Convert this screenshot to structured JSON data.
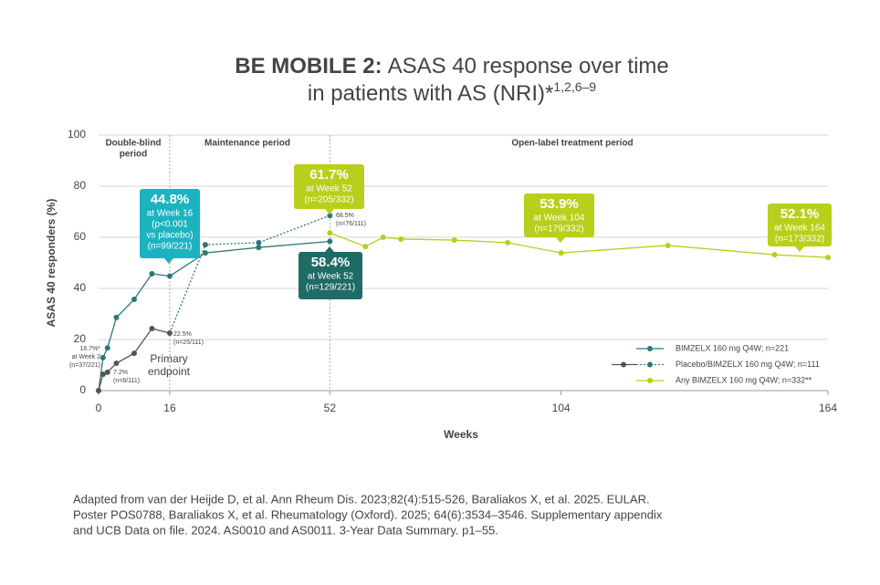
{
  "chart_data": {
    "type": "line",
    "title_lead": "BE MOBILE 2:",
    "title_lines": [
      "ASAS 40 response over time",
      "in patients with AS (NRI)*"
    ],
    "title_sup": "1,2,6–9",
    "x_label": "Weeks",
    "y_label": "ASAS 40 responders (%)",
    "xlim": [
      0,
      164
    ],
    "xticks": [
      0,
      16,
      52,
      104,
      164
    ],
    "ylim": [
      0,
      100
    ],
    "yticks": [
      0,
      20,
      40,
      60,
      80,
      100
    ],
    "grid": true,
    "period_lines": [
      16,
      52
    ],
    "periods": [
      [
        "Double-blind",
        "period"
      ],
      [
        "Maintenance period"
      ],
      [
        "Open-label treatment period"
      ]
    ],
    "series": [
      {
        "name": "BIMZELX 160 mg Q4W; n=221",
        "color": "#2a7a74",
        "x": [
          0,
          1,
          2,
          4,
          8,
          12,
          16,
          24,
          36,
          52
        ],
        "values": [
          0,
          12.9,
          16.7,
          28.6,
          35.7,
          45.7,
          44.8,
          53.9,
          56,
          58.4
        ]
      },
      {
        "name": "Placebo/BIMZELX 160 mg Q4W; n=111",
        "color": "#555555",
        "extension_color": "#2a7a74",
        "dashed_after_x": 16,
        "x": [
          0,
          1,
          2,
          4,
          8,
          12,
          16,
          24,
          36,
          52
        ],
        "values": [
          0,
          6.4,
          7.2,
          10.7,
          14.6,
          24.3,
          22.5,
          57.1,
          57.9,
          68.5
        ]
      },
      {
        "name": "Any BIMZELX 160 mg Q4W; n=332**",
        "color": "#b8cf1c",
        "x": [
          52,
          60,
          64,
          68,
          80,
          92,
          104,
          128,
          152,
          164
        ],
        "values": [
          61.7,
          56.4,
          60,
          59.3,
          58.9,
          57.9,
          53.9,
          56.8,
          53.2,
          52.1
        ]
      }
    ],
    "callouts": [
      {
        "lines": [
          "44.8%",
          "at Week 16",
          "(p<0.001",
          "vs placebo)",
          "(n=99/221)"
        ],
        "color": "#1cb3c0"
      },
      {
        "lines": [
          "61.7%",
          "at Week 52",
          "(n=205/332)"
        ],
        "color": "#b8cf1c"
      },
      {
        "lines": [
          "58.4%",
          "at Week 52",
          "(n=129/221)"
        ],
        "color": "#1f6b66"
      },
      {
        "lines": [
          "53.9%",
          "at Week 104",
          "(n=179/332)"
        ],
        "color": "#b8cf1c"
      },
      {
        "lines": [
          "52.1%",
          "at Week 164",
          "(n=173/332)"
        ],
        "color": "#b8cf1c"
      }
    ],
    "small_labels": [
      [
        "16.7%*",
        "at Week 2",
        "(n=37/221)"
      ],
      [
        "7.2%",
        "(n=8/111)"
      ],
      [
        "22.5%",
        "(n=25/111)"
      ],
      [
        "68.5%",
        "(n=76/111)"
      ]
    ],
    "endpoint_label": [
      "Primary",
      "endpoint"
    ],
    "footnote": [
      "Adapted from van der Heijde D, et al. Ann Rheum Dis. 2023;82(4):515-526, Baraliakos X, et al. 2025. EULAR.",
      "Poster POS0788, Baraliakos X, et al. Rheumatology (Oxford). 2025; 64(6):3534–3546. Supplementary appendix",
      "and UCB Data on file. 2024. AS0010 and AS0011. 3-Year Data Summary. p1–55."
    ]
  }
}
